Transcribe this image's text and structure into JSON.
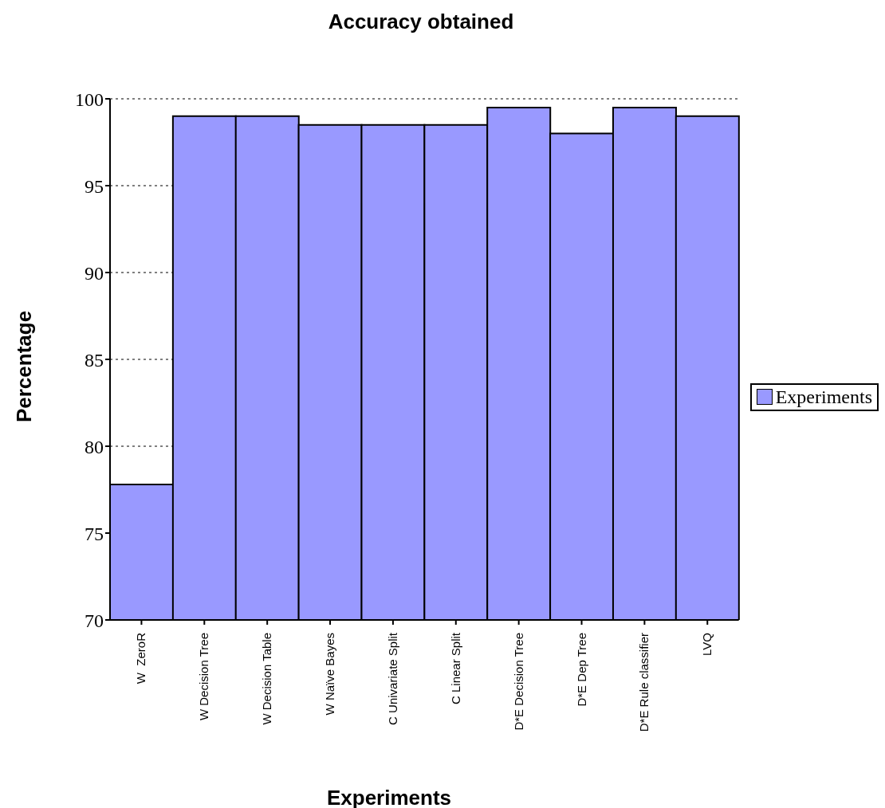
{
  "chart_data": {
    "type": "bar",
    "title": "Accuracy obtained",
    "xlabel": "Experiments",
    "ylabel": "Percentage",
    "categories": [
      "W  ZeroR",
      "W Decision Tree",
      "W Decision Table",
      "W Naïve Bayes",
      "C Univariate Split",
      "C Linear Split",
      "D*E Decision Tree",
      "D*E Dep Tree",
      "D*E Rule classifier",
      "LVQ"
    ],
    "series": [
      {
        "name": "Experiments",
        "color": "#9999ff",
        "values": [
          77.8,
          99,
          99,
          98.5,
          98.5,
          98.5,
          99.5,
          98,
          99.5,
          99
        ]
      }
    ],
    "ylim": [
      70,
      100
    ],
    "yticks": [
      70,
      75,
      80,
      85,
      90,
      95,
      100
    ],
    "grid": "y",
    "legend": "right"
  }
}
